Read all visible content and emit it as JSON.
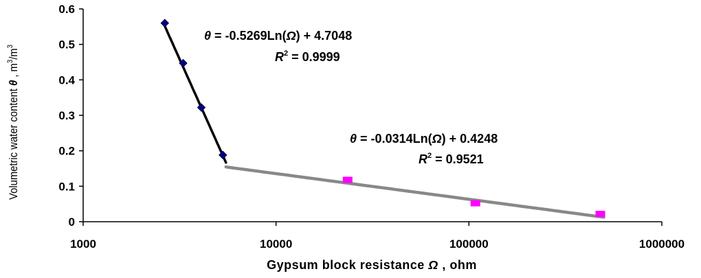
{
  "chart_data": {
    "type": "scatter",
    "title": "",
    "xlabel": "Gypsum block resistance Ω , ohm",
    "xlabel_parts": {
      "pre": "Gypsum block resistance ",
      "sym": "Ω",
      "post": " , ohm"
    },
    "ylabel": "Volumetric water content θ , m3/m3",
    "ylabel_parts": {
      "pre": "Volumetric water content ",
      "sym": "θ",
      "post": " , m",
      "sup1": "3",
      "mid": "/m",
      "sup2": "3"
    },
    "x_scale": "log",
    "xlim": [
      1000,
      1000000
    ],
    "ylim": [
      0,
      0.6
    ],
    "x_ticks": [
      {
        "value": 1000,
        "label": "1000"
      },
      {
        "value": 10000,
        "label": "10000"
      },
      {
        "value": 100000,
        "label": "100000"
      },
      {
        "value": 1000000,
        "label": "1000000"
      }
    ],
    "y_ticks": [
      {
        "value": 0,
        "label": "0"
      },
      {
        "value": 0.1,
        "label": "0.1"
      },
      {
        "value": 0.2,
        "label": "0.2"
      },
      {
        "value": 0.3,
        "label": "0.3"
      },
      {
        "value": 0.4,
        "label": "0.4"
      },
      {
        "value": 0.5,
        "label": "0.5"
      },
      {
        "value": 0.6,
        "label": "0.6"
      }
    ],
    "grid": false,
    "legend": "none",
    "series": [
      {
        "marker": "diamond",
        "color": "#000080",
        "x": [
          2650,
          3300,
          4100,
          5300
        ],
        "y": [
          0.56,
          0.447,
          0.322,
          0.188
        ]
      },
      {
        "marker": "square",
        "color": "#ff00ff",
        "x": [
          23500,
          108000,
          480000
        ],
        "y": [
          0.118,
          0.052,
          0.022
        ]
      }
    ],
    "trendlines": [
      {
        "kind": "log",
        "a": -0.5269,
        "b": 4.7048,
        "x_range": [
          2650,
          5500
        ],
        "color": "#000000",
        "equation_parts": {
          "sym": "θ",
          "mid": " = -0.5269Ln(",
          "arg": "Ω",
          "end": ") + 4.7048"
        },
        "r2_parts": {
          "r": "R",
          "sup": "2",
          "val": " = 0.9999"
        }
      },
      {
        "kind": "log",
        "a": -0.0314,
        "b": 0.4248,
        "x_range": [
          5500,
          500000
        ],
        "color": "#888888",
        "equation_parts": {
          "sym": "θ",
          "mid": " = -0.0314Ln(",
          "arg": "Ω",
          "end": ") + 0.4248"
        },
        "r2_parts": {
          "r": "R",
          "sup": "2",
          "val": " = 0.9521"
        }
      }
    ]
  }
}
